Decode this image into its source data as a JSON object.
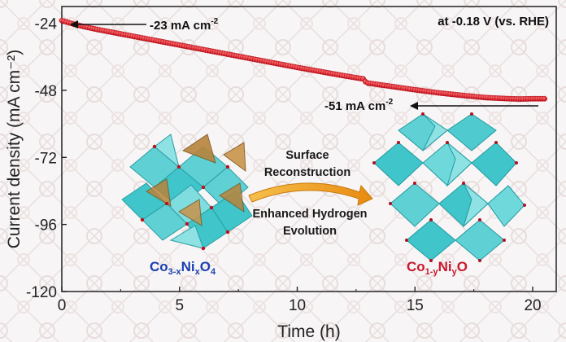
{
  "chart_data": {
    "type": "line",
    "xlabel": "Time (h)",
    "ylabel": "Current density (mA cm⁻²)",
    "xlim": [
      0,
      21
    ],
    "ylim": [
      -120,
      -18
    ],
    "xticks": [
      0,
      5,
      10,
      15,
      20
    ],
    "yticks": [
      -24,
      -48,
      -72,
      -96,
      -120
    ],
    "grid": false,
    "series": [
      {
        "color": "#e0141c",
        "x": [
          0,
          0.5,
          1,
          1.5,
          2,
          3,
          4,
          5,
          6,
          7,
          8,
          9,
          10,
          11,
          12,
          12.8,
          12.9,
          13,
          14,
          15,
          16,
          17,
          18,
          19,
          19.5,
          20,
          20.5
        ],
        "y": [
          -23,
          -24.3,
          -25.3,
          -26.2,
          -27,
          -28.6,
          -30.2,
          -31.8,
          -33.4,
          -35,
          -36.6,
          -38.2,
          -39.8,
          -41.3,
          -42.8,
          -43.9,
          -44.9,
          -45.4,
          -46.6,
          -47.8,
          -48.9,
          -49.8,
          -50.6,
          -51,
          -51.1,
          -51,
          -51
        ]
      }
    ],
    "annotations": {
      "condition": "at -0.18 V (vs. RHE)",
      "start_label": "-23 mA cm",
      "end_label": "-51 mA cm",
      "unit_superscript": "-2",
      "process_line1": "Surface",
      "process_line2": "Reconstruction",
      "effect_line1": "Enhanced Hydrogen",
      "effect_line2": "Evolution",
      "left_formula": {
        "a": "Co",
        "b": "3-x",
        "c": "Ni",
        "d": "x",
        "e": "O",
        "f": "4"
      },
      "right_formula": {
        "a": "Co",
        "b": "1-y",
        "c": "Ni",
        "d": "y",
        "e": "O"
      }
    }
  },
  "colors": {
    "line": "#e0141c",
    "left_formula": "#1a3fb0",
    "right_formula": "#c8182a",
    "octahedra": "#2fc3c8",
    "tetrahedra": "#b8843a",
    "arrow": "#f0a020"
  }
}
